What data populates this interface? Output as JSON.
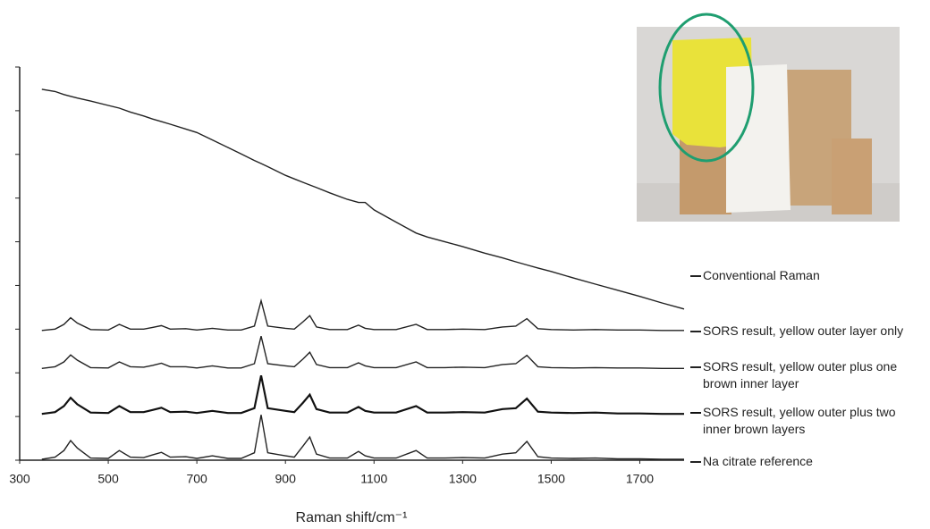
{
  "chart_data": {
    "type": "line",
    "x_label": "Raman shift/cm⁻¹",
    "x": [
      350,
      380,
      400,
      415,
      430,
      460,
      500,
      525,
      550,
      580,
      600,
      620,
      640,
      675,
      700,
      735,
      770,
      800,
      830,
      845,
      860,
      900,
      920,
      940,
      955,
      970,
      1000,
      1040,
      1065,
      1080,
      1100,
      1150,
      1195,
      1220,
      1260,
      1300,
      1350,
      1390,
      1420,
      1445,
      1470,
      1500,
      1550,
      1600,
      1650,
      1700,
      1750,
      1800
    ],
    "series": [
      {
        "name": "Conventional Raman",
        "color": "#222222",
        "values": [
          8.49,
          8.44,
          8.37,
          8.33,
          8.29,
          8.22,
          8.12,
          8.06,
          7.97,
          7.88,
          7.81,
          7.75,
          7.69,
          7.58,
          7.5,
          7.33,
          7.16,
          7.01,
          6.86,
          6.79,
          6.72,
          6.52,
          6.44,
          6.36,
          6.3,
          6.24,
          6.12,
          5.97,
          5.9,
          5.9,
          5.73,
          5.45,
          5.2,
          5.11,
          5.0,
          4.89,
          4.74,
          4.63,
          4.54,
          4.47,
          4.4,
          4.32,
          4.17,
          4.03,
          3.89,
          3.75,
          3.6,
          3.46
        ]
      },
      {
        "name": "SORS result, yellow outer layer only",
        "color": "#222222",
        "values": [
          2.97,
          3.0,
          3.11,
          3.26,
          3.14,
          2.99,
          2.98,
          3.11,
          3.0,
          3.0,
          3.04,
          3.08,
          3.0,
          3.01,
          2.98,
          3.02,
          2.98,
          2.98,
          3.07,
          3.65,
          3.07,
          3.02,
          3.0,
          3.17,
          3.31,
          3.05,
          2.99,
          2.99,
          3.09,
          3.02,
          2.99,
          2.99,
          3.11,
          2.99,
          2.99,
          3.0,
          2.99,
          3.05,
          3.07,
          3.24,
          3.01,
          2.99,
          2.98,
          2.99,
          2.98,
          2.98,
          2.97,
          2.97
        ]
      },
      {
        "name": "SORS result, yellow outer plus one brown inner layer",
        "color": "#222222",
        "values": [
          2.1,
          2.14,
          2.25,
          2.41,
          2.29,
          2.12,
          2.11,
          2.25,
          2.14,
          2.13,
          2.17,
          2.22,
          2.14,
          2.14,
          2.11,
          2.16,
          2.11,
          2.11,
          2.21,
          2.84,
          2.21,
          2.16,
          2.14,
          2.32,
          2.47,
          2.19,
          2.12,
          2.12,
          2.23,
          2.16,
          2.12,
          2.12,
          2.25,
          2.12,
          2.12,
          2.13,
          2.12,
          2.19,
          2.21,
          2.4,
          2.14,
          2.12,
          2.11,
          2.12,
          2.11,
          2.11,
          2.1,
          2.1
        ]
      },
      {
        "name": "SORS result, yellow outer plus two inner brown layers",
        "color": "#111111",
        "values": [
          1.06,
          1.1,
          1.24,
          1.43,
          1.28,
          1.09,
          1.08,
          1.24,
          1.1,
          1.1,
          1.15,
          1.2,
          1.1,
          1.11,
          1.08,
          1.13,
          1.08,
          1.08,
          1.19,
          1.94,
          1.19,
          1.13,
          1.1,
          1.32,
          1.5,
          1.17,
          1.09,
          1.09,
          1.22,
          1.13,
          1.09,
          1.09,
          1.24,
          1.09,
          1.09,
          1.1,
          1.09,
          1.17,
          1.19,
          1.41,
          1.11,
          1.09,
          1.08,
          1.09,
          1.07,
          1.07,
          1.06,
          1.06
        ]
      },
      {
        "name": "Na citrate reference",
        "color": "#222222",
        "values": [
          0.02,
          0.07,
          0.22,
          0.45,
          0.28,
          0.05,
          0.04,
          0.22,
          0.07,
          0.06,
          0.12,
          0.18,
          0.07,
          0.08,
          0.04,
          0.1,
          0.04,
          0.04,
          0.17,
          1.04,
          0.17,
          0.1,
          0.07,
          0.33,
          0.53,
          0.14,
          0.05,
          0.05,
          0.2,
          0.1,
          0.05,
          0.05,
          0.22,
          0.05,
          0.05,
          0.06,
          0.05,
          0.14,
          0.17,
          0.43,
          0.08,
          0.05,
          0.04,
          0.05,
          0.03,
          0.03,
          0.02,
          0.02
        ]
      }
    ],
    "xlim": [
      300,
      1800
    ],
    "xticks": [
      300,
      500,
      700,
      900,
      1100,
      1300,
      1500,
      1700
    ],
    "ylim": [
      0,
      9
    ],
    "yticks": [
      0,
      1,
      2,
      3,
      4,
      5,
      6,
      7,
      8,
      9
    ]
  }
}
